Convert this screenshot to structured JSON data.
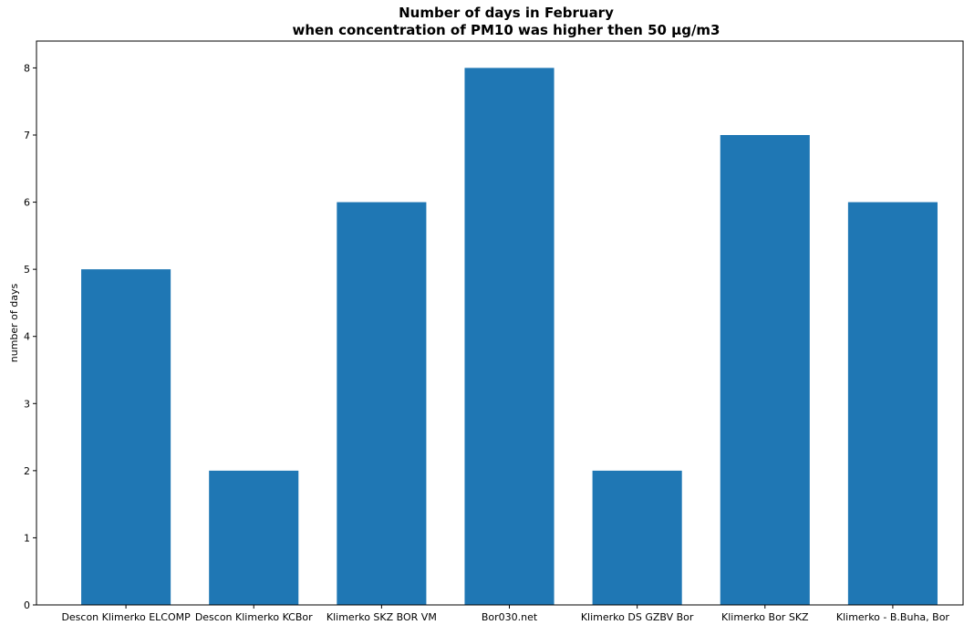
{
  "chart_data": {
    "type": "bar",
    "title_lines": [
      "Number of days in February",
      "when concentration of PM10 was higher then 50 µg/m3"
    ],
    "xlabel": "",
    "ylabel": "number of days",
    "categories": [
      "Descon Klimerko ELCOMP",
      "Descon Klimerko KCBor",
      "Klimerko SKZ BOR VM",
      "Bor030.net",
      "Klimerko DS GZBV Bor",
      "Klimerko Bor SKZ",
      "Klimerko - B.Buha, Bor"
    ],
    "values": [
      5,
      2,
      6,
      8,
      2,
      7,
      6
    ],
    "yticks": [
      0,
      1,
      2,
      3,
      4,
      5,
      6,
      7,
      8
    ],
    "ylim": [
      0,
      8.4
    ],
    "bar_color": "#1f77b4",
    "grid": false,
    "legend": "none"
  }
}
